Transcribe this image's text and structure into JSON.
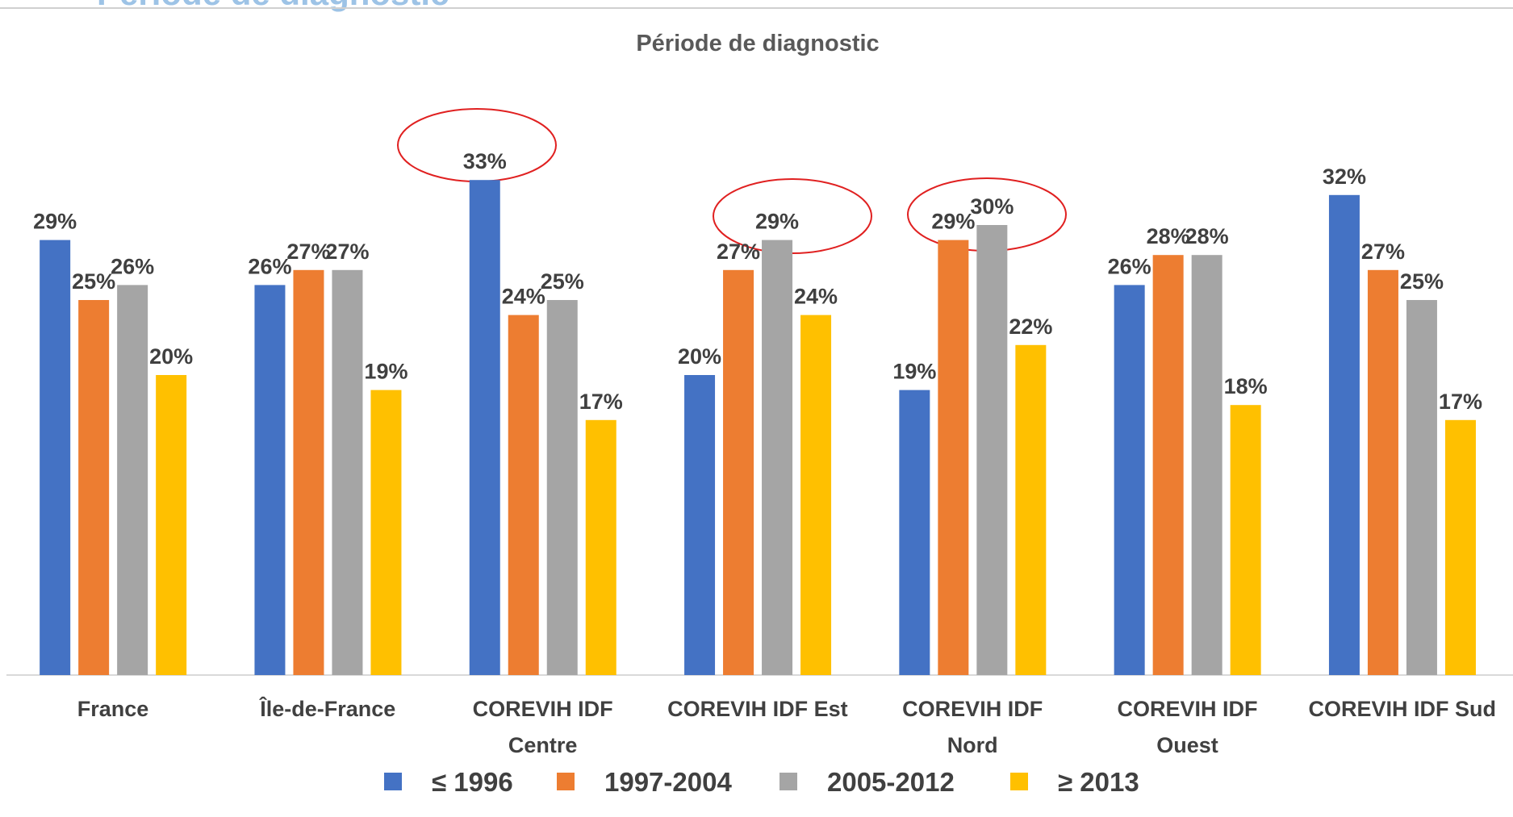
{
  "slide_title": "Période de diagnostic",
  "chart_data": {
    "type": "bar",
    "title": "Période de diagnostic",
    "categories": [
      "France",
      "Île-de-France",
      "COREVIH IDF\nCentre",
      "COREVIH IDF Est",
      "COREVIH IDF\nNord",
      "COREVIH IDF\nOuest",
      "COREVIH IDF Sud"
    ],
    "series": [
      {
        "name": "≤ 1996",
        "color": "#4472c4",
        "values": [
          29,
          26,
          33,
          20,
          19,
          26,
          32
        ],
        "value_labels": [
          "29%",
          "26%",
          "33%",
          "20%",
          "19%",
          "26%",
          "32%"
        ]
      },
      {
        "name": "1997-2004",
        "color": "#ed7d31",
        "values": [
          25,
          27,
          24,
          27,
          29,
          28,
          27
        ],
        "value_labels": [
          "25%",
          "27%",
          "24%",
          "27%",
          "29%",
          "28%",
          "27%"
        ]
      },
      {
        "name": "2005-2012",
        "color": "#a5a5a5",
        "values": [
          26,
          27,
          25,
          29,
          30,
          28,
          25
        ],
        "value_labels": [
          "26%",
          "27%",
          "25%",
          "29%",
          "30%",
          "28%",
          "25%"
        ]
      },
      {
        "name": "≥ 2013",
        "color": "#ffc000",
        "values": [
          20,
          19,
          17,
          24,
          22,
          18,
          17
        ],
        "value_labels": [
          "20%",
          "19%",
          "17%",
          "24%",
          "22%",
          "18%",
          "17%"
        ]
      }
    ],
    "ylim": [
      0,
      45
    ],
    "legend": "bottom"
  }
}
